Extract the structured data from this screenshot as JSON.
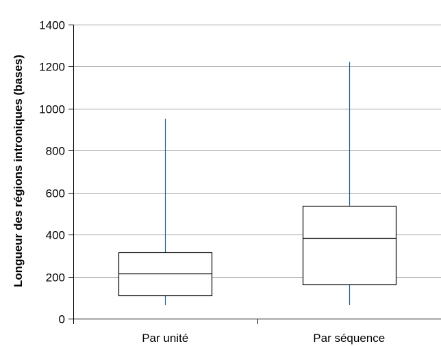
{
  "chart_data": {
    "type": "boxplot",
    "title": "",
    "xlabel": "",
    "ylabel": "Longueur des régions introniques (bases)",
    "ylim": [
      0,
      1400
    ],
    "yticks": [
      "0",
      "200",
      "400",
      "600",
      "800",
      "1000",
      "1200",
      "1400"
    ],
    "grid": true,
    "categories": [
      "Par unité",
      "Par séquence"
    ],
    "boxes": [
      {
        "category": "Par unité",
        "whisker_low": 65,
        "q1": 112,
        "median": 216,
        "q3": 315,
        "whisker_high": 952
      },
      {
        "category": "Par séquence",
        "whisker_low": 65,
        "q1": 163,
        "median": 385,
        "q3": 538,
        "whisker_high": 1222
      }
    ],
    "colors": {
      "whisker": "#1f5f8b",
      "box": "#000000",
      "grid": "#a0a0a0",
      "axis": "#000000"
    }
  }
}
